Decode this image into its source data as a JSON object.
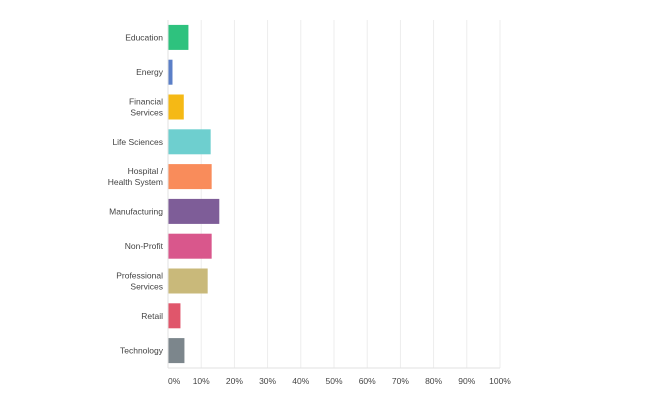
{
  "chart_data": {
    "type": "bar",
    "orientation": "horizontal",
    "categories": [
      "Education",
      "Energy",
      "Financial Services",
      "Life Sciences",
      "Hospital / Health System",
      "Manufacturing",
      "Non-Profit",
      "Professional Services",
      "Retail",
      "Technology"
    ],
    "category_lines": [
      [
        "Education"
      ],
      [
        "Energy"
      ],
      [
        "Financial",
        "Services"
      ],
      [
        "Life Sciences"
      ],
      [
        "Hospital /",
        "Health System"
      ],
      [
        "Manufacturing"
      ],
      [
        "Non-Profit"
      ],
      [
        "Professional",
        "Services"
      ],
      [
        "Retail"
      ],
      [
        "Technology"
      ]
    ],
    "values": [
      6.0,
      1.2,
      4.6,
      12.7,
      13.0,
      15.3,
      13.0,
      11.8,
      3.6,
      4.8
    ],
    "colors": [
      "#2ec27e",
      "#5b7fc7",
      "#f5b915",
      "#6ecfcf",
      "#f98c5b",
      "#7e5d98",
      "#d9578c",
      "#c9b97a",
      "#e0566b",
      "#7c868c"
    ],
    "xlim": [
      0,
      100
    ],
    "x_ticks": [
      0,
      10,
      20,
      30,
      40,
      50,
      60,
      70,
      80,
      90,
      100
    ],
    "x_tick_labels": [
      "0%",
      "10%",
      "20%",
      "30%",
      "40%",
      "50%",
      "60%",
      "70%",
      "80%",
      "90%",
      "100%"
    ],
    "grid": true,
    "title": "",
    "xlabel": "",
    "ylabel": ""
  }
}
